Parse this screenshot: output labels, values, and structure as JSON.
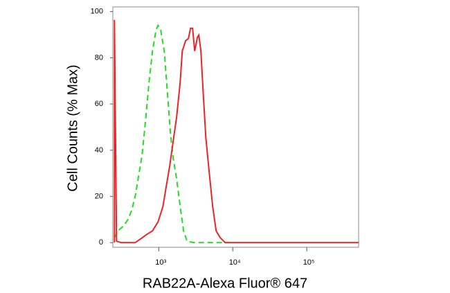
{
  "chart_data": {
    "type": "line",
    "xlabel": "RAB22A-Alexa Fluor® 647",
    "ylabel": "Cell Counts (% Max)",
    "xscale": "log",
    "xlim": [
      240,
      502000
    ],
    "ylim": [
      -2,
      102
    ],
    "xticks": [
      {
        "value": 1000,
        "label": "10³"
      },
      {
        "value": 10000,
        "label": "10⁴"
      },
      {
        "value": 100000,
        "label": "10⁵"
      }
    ],
    "yticks": [
      0,
      20,
      40,
      60,
      80,
      100
    ],
    "series": [
      {
        "color": "#22dd22",
        "linestyle": "dashed",
        "x": [
          252,
          281,
          334,
          388,
          432,
          481,
          536,
          597,
          664,
          740,
          824,
          918,
          979,
          1066,
          1188,
          1322,
          1442,
          1571,
          1750,
          1950,
          2170,
          2415,
          2998,
          8790
        ],
        "values": [
          2.1,
          5.1,
          7.2,
          10.2,
          14.1,
          20.1,
          29.0,
          38.0,
          53.0,
          69.5,
          82.9,
          91.9,
          94.0,
          91.9,
          82.9,
          63.5,
          47.0,
          36.5,
          27.5,
          15.6,
          5.1,
          0.6,
          0,
          0
        ]
      },
      {
        "color": "#ee2222",
        "linestyle": "solid",
        "x": [
          252,
          252,
          269,
          313,
          481,
          597,
          693,
          824,
          979,
          1138,
          1267,
          1412,
          1571,
          1750,
          1950,
          2080,
          2313,
          2523,
          2692,
          2871,
          3062,
          3337,
          3484,
          3717,
          3964,
          4325,
          4810,
          5357,
          5967,
          6792,
          7889,
          502000
        ],
        "values": [
          0,
          96.4,
          0.6,
          0,
          0,
          2.1,
          3.6,
          5.1,
          9.0,
          15.6,
          24.6,
          33.5,
          44.0,
          54.5,
          69.5,
          82.9,
          87.4,
          88.3,
          92.8,
          92.8,
          82.9,
          88.9,
          89.8,
          82.9,
          66.5,
          45.5,
          30.5,
          15.6,
          5.1,
          2.1,
          0,
          0
        ]
      }
    ]
  }
}
